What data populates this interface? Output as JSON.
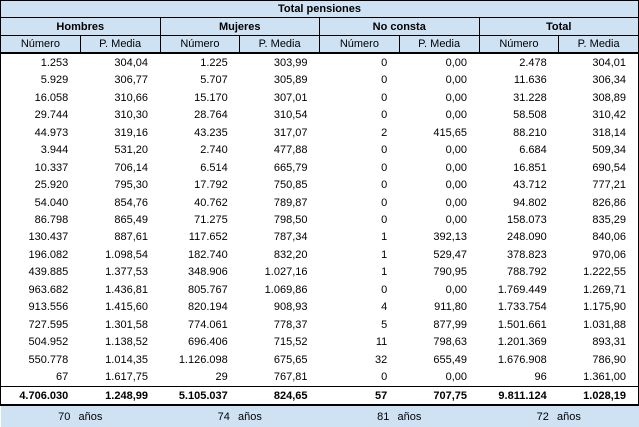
{
  "title": "Total pensiones",
  "colors": {
    "header_bg": "#cfe2f4",
    "body_bg": "#ffffff",
    "border": "#000000",
    "text": "#000000"
  },
  "chart_data": {
    "type": "table",
    "title": "Total pensiones",
    "column_groups": [
      "Hombres",
      "Mujeres",
      "No consta",
      "Total"
    ],
    "subcolumns": [
      "Número",
      "P. Media"
    ],
    "rows": [
      [
        "1.253",
        "304,04",
        "1.225",
        "303,99",
        "0",
        "0,00",
        "2.478",
        "304,01"
      ],
      [
        "5.929",
        "306,77",
        "5.707",
        "305,89",
        "0",
        "0,00",
        "11.636",
        "306,34"
      ],
      [
        "16.058",
        "310,66",
        "15.170",
        "307,01",
        "0",
        "0,00",
        "31.228",
        "308,89"
      ],
      [
        "29.744",
        "310,30",
        "28.764",
        "310,54",
        "0",
        "0,00",
        "58.508",
        "310,42"
      ],
      [
        "44.973",
        "319,16",
        "43.235",
        "317,07",
        "2",
        "415,65",
        "88.210",
        "318,14"
      ],
      [
        "3.944",
        "531,20",
        "2.740",
        "477,88",
        "0",
        "0,00",
        "6.684",
        "509,34"
      ],
      [
        "10.337",
        "706,14",
        "6.514",
        "665,79",
        "0",
        "0,00",
        "16.851",
        "690,54"
      ],
      [
        "25.920",
        "795,30",
        "17.792",
        "750,85",
        "0",
        "0,00",
        "43.712",
        "777,21"
      ],
      [
        "54.040",
        "854,76",
        "40.762",
        "789,87",
        "0",
        "0,00",
        "94.802",
        "826,86"
      ],
      [
        "86.798",
        "865,49",
        "71.275",
        "798,50",
        "0",
        "0,00",
        "158.073",
        "835,29"
      ],
      [
        "130.437",
        "887,61",
        "117.652",
        "787,34",
        "1",
        "392,13",
        "248.090",
        "840,06"
      ],
      [
        "196.082",
        "1.098,54",
        "182.740",
        "832,20",
        "1",
        "529,47",
        "378.823",
        "970,06"
      ],
      [
        "439.885",
        "1.377,53",
        "348.906",
        "1.027,16",
        "1",
        "790,95",
        "788.792",
        "1.222,55"
      ],
      [
        "963.682",
        "1.436,81",
        "805.767",
        "1.069,86",
        "0",
        "0,00",
        "1.769.449",
        "1.269,71"
      ],
      [
        "913.556",
        "1.415,60",
        "820.194",
        "908,93",
        "4",
        "911,80",
        "1.733.754",
        "1.175,90"
      ],
      [
        "727.595",
        "1.301,58",
        "774.061",
        "778,37",
        "5",
        "877,99",
        "1.501.661",
        "1.031,88"
      ],
      [
        "504.952",
        "1.138,52",
        "696.406",
        "715,52",
        "11",
        "798,63",
        "1.201.369",
        "893,31"
      ],
      [
        "550.778",
        "1.014,35",
        "1.126.098",
        "675,65",
        "32",
        "655,49",
        "1.676.908",
        "786,90"
      ],
      [
        "67",
        "1.617,75",
        "29",
        "767,81",
        "0",
        "0,00",
        "96",
        "1.361,00"
      ]
    ],
    "total_row": [
      "4.706.030",
      "1.248,99",
      "5.105.037",
      "824,65",
      "57",
      "707,75",
      "9.811.124",
      "1.028,19"
    ],
    "footer_row": [
      "70 años",
      "74 años",
      "81 años",
      "72 años"
    ]
  }
}
